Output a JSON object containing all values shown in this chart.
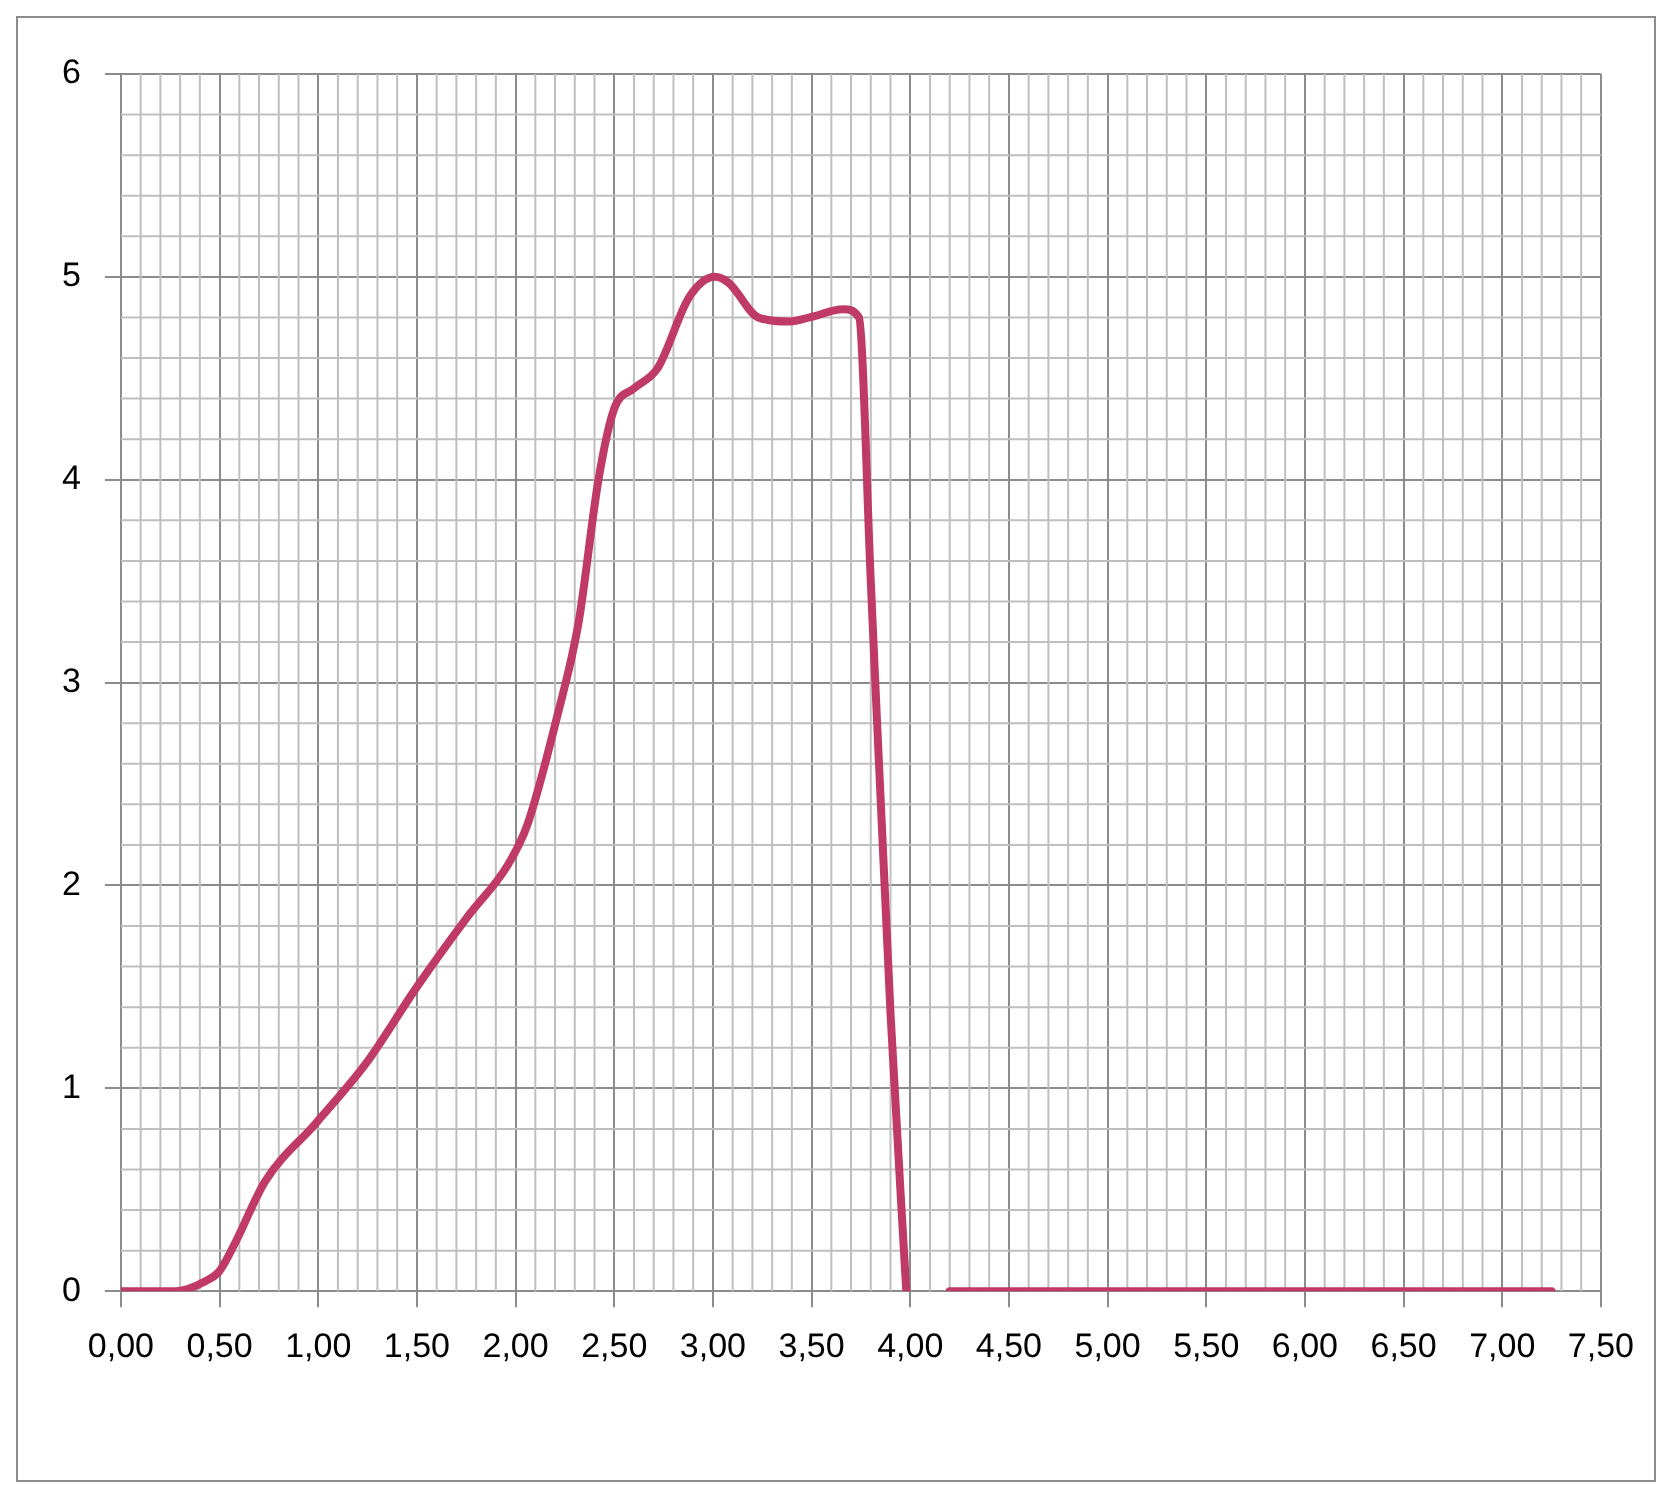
{
  "chart_data": {
    "type": "line",
    "x": [
      0,
      0.28,
      0.43,
      0.5,
      0.58,
      0.73,
      0.99,
      1.24,
      1.5,
      1.76,
      1.96,
      2.06,
      2.21,
      2.32,
      2.42,
      2.5,
      2.6,
      2.72,
      2.88,
      3.01,
      3.08,
      3.23,
      3.39,
      3.49,
      3.66,
      3.74,
      3.8,
      3.9,
      3.98,
      4.1,
      4.2,
      5,
      6,
      7,
      7.25
    ],
    "series": [
      {
        "color": "#bf3a67",
        "values": [
          0,
          0,
          0.05,
          0.1,
          0.24,
          0.54,
          0.83,
          1.12,
          1.5,
          1.85,
          2.1,
          2.3,
          2.83,
          3.3,
          4.0,
          4.35,
          4.45,
          4.55,
          4.9,
          5.0,
          4.97,
          4.8,
          4.78,
          4.8,
          4.84,
          4.8,
          3.5,
          1.37,
          0,
          null,
          0,
          0,
          0,
          0,
          0
        ]
      }
    ],
    "xlim": [
      0,
      7.5
    ],
    "xticks": [
      {
        "value": 0,
        "label": "0,00"
      },
      {
        "value": 0.5,
        "label": "0,50"
      },
      {
        "value": 1,
        "label": "1,00"
      },
      {
        "value": 1.5,
        "label": "1,50"
      },
      {
        "value": 2,
        "label": "2,00"
      },
      {
        "value": 2.5,
        "label": "2,50"
      },
      {
        "value": 3,
        "label": "3,00"
      },
      {
        "value": 3.5,
        "label": "3,50"
      },
      {
        "value": 4,
        "label": "4,00"
      },
      {
        "value": 4.5,
        "label": "4,50"
      },
      {
        "value": 5,
        "label": "5,00"
      },
      {
        "value": 5.5,
        "label": "5,50"
      },
      {
        "value": 6,
        "label": "6,00"
      },
      {
        "value": 6.5,
        "label": "6,50"
      },
      {
        "value": 7,
        "label": "7,00"
      },
      {
        "value": 7.5,
        "label": "7,50"
      }
    ],
    "ylim": [
      0,
      6
    ],
    "yticks": [
      0,
      1,
      2,
      3,
      4,
      5,
      6
    ],
    "grid": true,
    "marker": "none",
    "line_style": "solid"
  }
}
